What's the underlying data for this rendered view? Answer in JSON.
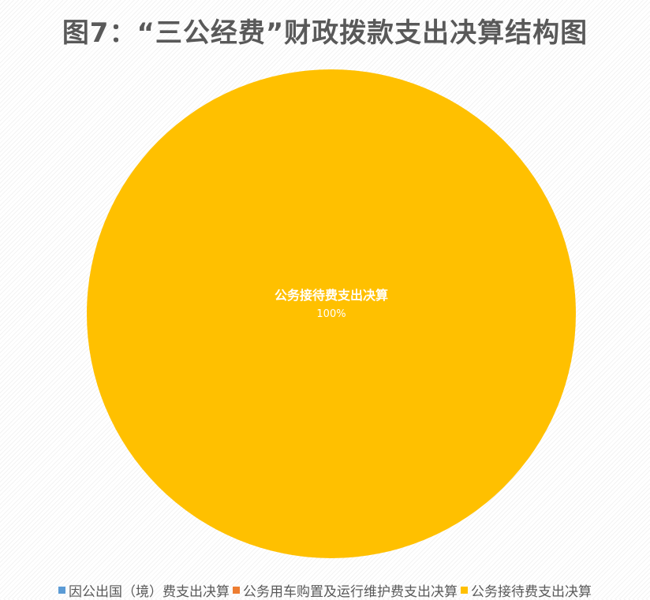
{
  "chart_data": {
    "type": "pie",
    "title": "图7：“三公经费”财政拨款支出决算结构图",
    "series": [
      {
        "name": "因公出国（境）费支出决算",
        "value": 0,
        "color": "#5b9bd5"
      },
      {
        "name": "公务用车购置及运行维护费支出决算",
        "value": 0,
        "color": "#ed7d31"
      },
      {
        "name": "公务接待费支出决算",
        "value": 100,
        "color": "#ffc000"
      }
    ],
    "data_labels": [
      {
        "category": "公务接待费支出决算",
        "text": "100%"
      }
    ],
    "legend_position": "bottom"
  }
}
